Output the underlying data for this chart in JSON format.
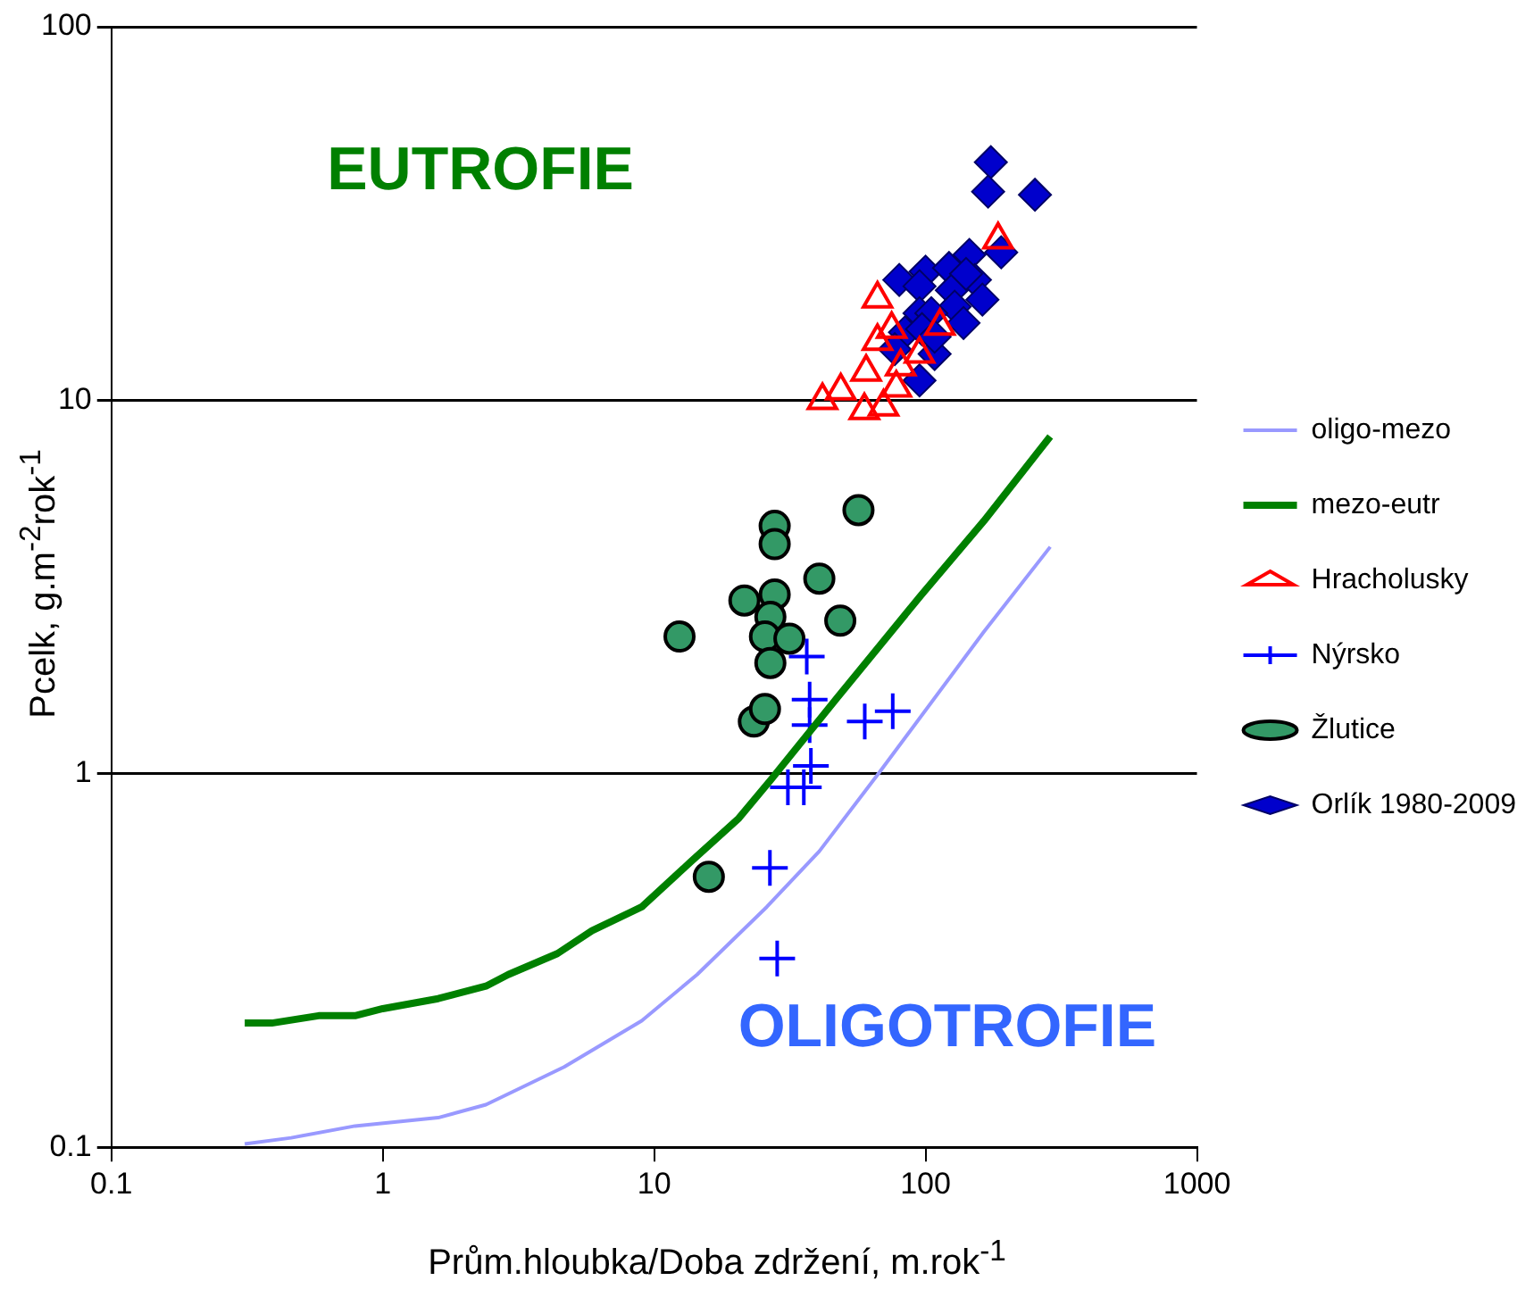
{
  "chart_data": {
    "type": "scatter",
    "xlabel": "Prům.hloubka/Doba zdržení, m.rok$^{-1}$",
    "ylabel": "Pcelk, g.m$^{-2}$rok$^{-1}$",
    "log": "xy",
    "xlim": [
      0.1,
      1000
    ],
    "ylim": [
      0.1,
      100
    ],
    "xticks": [
      0.1,
      1,
      10,
      100,
      1000
    ],
    "yticks": [
      0.1,
      1,
      10,
      100
    ],
    "grid": "y",
    "legend": "right",
    "annotations": [
      "EUTROFIE",
      "OLIGOTROFIE"
    ],
    "series": [
      {
        "name": "oligo-mezo",
        "type": "line",
        "color": "#9999ff",
        "marker": "none",
        "x": [
          0.31,
          0.46,
          0.79,
          1.6,
          2.4,
          4.66,
          9.0,
          14.4,
          26,
          40.6,
          67,
          164,
          288
        ],
        "values": [
          0.102,
          0.106,
          0.114,
          0.12,
          0.13,
          0.164,
          0.218,
          0.29,
          0.44,
          0.62,
          1.0,
          2.4,
          4.05
        ]
      },
      {
        "name": "mezo-eutr",
        "type": "line",
        "color": "#008000",
        "marker": "none",
        "x": [
          0.31,
          0.39,
          0.58,
          0.79,
          1.0,
          1.6,
          2.4,
          2.9,
          4.4,
          5.9,
          9.0,
          13.6,
          20.5,
          26.8,
          47,
          96,
          164,
          288
        ],
        "values": [
          0.215,
          0.215,
          0.225,
          0.225,
          0.235,
          0.25,
          0.27,
          0.29,
          0.33,
          0.38,
          0.44,
          0.58,
          0.76,
          0.96,
          1.59,
          3.0,
          4.75,
          8.0
        ]
      },
      {
        "name": "Hracholusky",
        "color": "#ff0000",
        "marker": "triangle",
        "x": [
          41.7,
          48.7,
          60.4,
          59.5,
          70,
          78,
          66.5,
          66.5,
          75,
          95,
          113,
          81,
          185
        ],
        "values": [
          10.0,
          10.6,
          11.9,
          9.4,
          9.6,
          10.8,
          18.7,
          14.4,
          15.5,
          13.3,
          15.8,
          12.3,
          26.9
        ]
      },
      {
        "name": "Nýrsko",
        "color": "#0000ff",
        "marker": "cross",
        "x": [
          36.5,
          37.4,
          37.4,
          59.7,
          75.7,
          31.1,
          35.6,
          26.7,
          28.4,
          37.8
        ],
        "values": [
          2.06,
          1.35,
          1.58,
          1.38,
          1.47,
          0.92,
          0.92,
          0.56,
          0.32,
          1.05
        ]
      },
      {
        "name": "Žlutice",
        "color": "#339966",
        "marker": "circle",
        "x": [
          12.4,
          15.9,
          21.5,
          23.3,
          25.6,
          27.8,
          27.8,
          27.8,
          26.8,
          25.6,
          31.5,
          26.8,
          40.6,
          48.5,
          56.6
        ],
        "values": [
          2.33,
          0.53,
          2.91,
          1.38,
          1.49,
          4.61,
          4.12,
          3.02,
          2.63,
          2.33,
          2.3,
          1.98,
          3.33,
          2.57,
          5.08
        ]
      },
      {
        "name": "Orlík 1980-2009",
        "color": "#0000cc",
        "marker": "diamond",
        "x": [
          174,
          170,
          253,
          145,
          190,
          80,
          100,
          122,
          152,
          125,
          162,
          95,
          95,
          128,
          138,
          105,
          84,
          77,
          97,
          108,
          95,
          108,
          141
        ],
        "values": [
          43.4,
          36.2,
          35.5,
          24.5,
          24.9,
          21.0,
          22.1,
          22.6,
          21.0,
          19.7,
          18.6,
          20.2,
          17.1,
          17.8,
          16.1,
          17.1,
          15.2,
          13.7,
          15.5,
          13.3,
          11.3,
          14.8,
          21.8
        ]
      }
    ]
  }
}
